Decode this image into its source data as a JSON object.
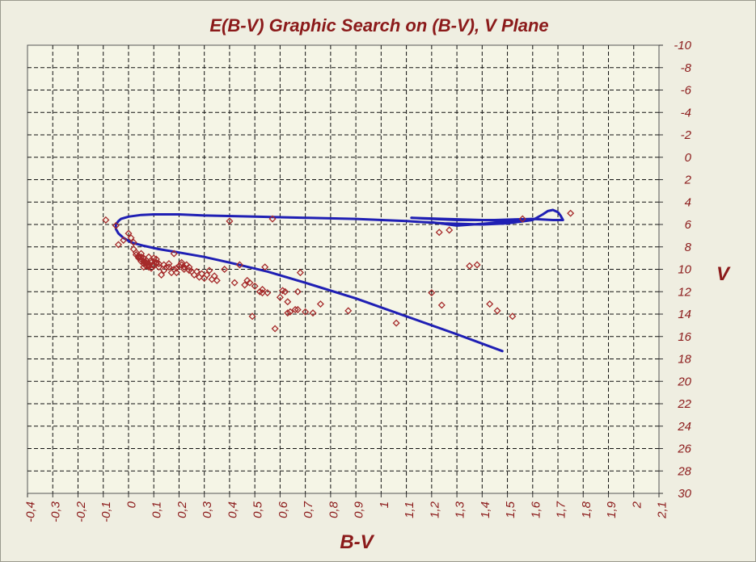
{
  "chart_data": {
    "type": "scatter",
    "title": "E(B-V) Graphic Search on (B-V), V Plane",
    "xlabel": "B-V",
    "ylabel": "V",
    "xlim": [
      -0.4,
      2.1
    ],
    "ylim": [
      -10,
      30
    ],
    "y_inverted": true,
    "grid": true,
    "y_axis_side": "right",
    "x_tick_labels": [
      "-0,4",
      "-0,3",
      "-0,2",
      "-0,1",
      "0",
      "0,1",
      "0,2",
      "0,3",
      "0,4",
      "0,5",
      "0,6",
      "0,7",
      "0,8",
      "0,9",
      "1",
      "1,1",
      "1,2",
      "1,3",
      "1,4",
      "1,5",
      "1,6",
      "1,7",
      "1,8",
      "1,9",
      "2",
      "2,1"
    ],
    "y_tick_labels": [
      "-10",
      "-8",
      "-6",
      "-4",
      "-2",
      "0",
      "2",
      "4",
      "6",
      "8",
      "10",
      "12",
      "14",
      "16",
      "18",
      "20",
      "22",
      "24",
      "26",
      "28",
      "30"
    ],
    "colors": {
      "points": "#a52a2a",
      "curve": "#1f1fb4",
      "grid": "#000000",
      "plot_bg": "#f5f5e6",
      "text": "#8b1a1a"
    },
    "series": [
      {
        "kind": "scatter",
        "marker": "diamond-open",
        "x": [
          -0.09,
          -0.05,
          -0.02,
          0.0,
          0.01,
          0.02,
          -0.04,
          0.02,
          0.03,
          0.04,
          0.05,
          0.06,
          0.07,
          0.08,
          0.09,
          0.1,
          0.11,
          0.12,
          0.04,
          0.05,
          0.06,
          0.07,
          0.08,
          0.09,
          0.1,
          0.11,
          0.03,
          0.04,
          0.05,
          0.06,
          0.07,
          0.08,
          0.09,
          0.1,
          0.06,
          0.07,
          0.08,
          0.09,
          0.1,
          0.11,
          0.12,
          0.13,
          0.14,
          0.15,
          0.16,
          0.17,
          0.18,
          0.19,
          0.2,
          0.21,
          0.22,
          0.23,
          0.24,
          0.25,
          0.16,
          0.18,
          0.19,
          0.21,
          0.22,
          0.24,
          0.26,
          0.27,
          0.28,
          0.29,
          0.3,
          0.31,
          0.32,
          0.33,
          0.34,
          0.35,
          0.38,
          0.42,
          0.44,
          0.46,
          0.47,
          0.48,
          0.5,
          0.52,
          0.53,
          0.54,
          0.55,
          0.6,
          0.61,
          0.62,
          0.63,
          0.64,
          0.66,
          0.67,
          0.68,
          0.7,
          0.73,
          0.76,
          0.87,
          1.06,
          1.2,
          1.24,
          1.35,
          1.38,
          1.43,
          1.46,
          1.52,
          1.56,
          1.75,
          0.4,
          0.57,
          1.23,
          1.27,
          0.49,
          0.58,
          0.63,
          0.67,
          0.53,
          0.14,
          0.05
        ],
        "y": [
          5.6,
          6.1,
          7.4,
          6.8,
          7.2,
          7.6,
          7.8,
          8.2,
          8.5,
          8.8,
          8.6,
          9.0,
          9.2,
          8.9,
          9.4,
          9.6,
          9.1,
          9.5,
          9.0,
          9.3,
          9.5,
          9.7,
          9.8,
          9.9,
          9.6,
          9.4,
          8.7,
          8.9,
          9.1,
          9.3,
          9.5,
          9.7,
          9.2,
          9.0,
          9.8,
          9.4,
          9.6,
          9.9,
          9.7,
          9.5,
          9.8,
          10.5,
          10.1,
          9.8,
          9.5,
          10.3,
          8.6,
          9.9,
          9.7,
          9.4,
          10.0,
          9.6,
          9.8,
          10.2,
          9.8,
          10.0,
          10.3,
          9.6,
          9.8,
          10.1,
          10.5,
          10.2,
          10.7,
          10.4,
          10.8,
          10.5,
          10.1,
          10.9,
          10.6,
          11.0,
          10.0,
          11.2,
          9.6,
          11.4,
          11.0,
          11.2,
          11.5,
          12.0,
          11.8,
          9.8,
          12.1,
          12.5,
          11.9,
          12.0,
          12.9,
          13.8,
          13.6,
          12.0,
          10.3,
          13.8,
          13.9,
          13.1,
          13.7,
          14.8,
          12.1,
          13.2,
          9.7,
          9.6,
          13.1,
          13.7,
          14.2,
          5.5,
          5.0,
          5.7,
          5.5,
          6.7,
          6.5,
          14.2,
          15.3,
          13.9,
          13.6,
          12.1,
          9.6,
          8.9
        ]
      },
      {
        "kind": "line",
        "x": [
          1.48,
          1.3,
          1.1,
          0.9,
          0.7,
          0.55,
          0.4,
          0.3,
          0.2,
          0.12,
          0.06,
          0.01,
          -0.02,
          -0.04,
          -0.05,
          -0.05,
          -0.04,
          -0.03,
          0.0,
          0.05,
          0.1,
          0.2,
          0.3,
          0.5,
          0.7,
          0.9,
          1.1,
          1.25,
          1.4,
          1.5,
          1.6,
          1.64,
          1.66,
          1.68,
          1.7,
          1.71,
          1.72,
          1.68,
          1.6,
          1.45,
          1.3,
          1.2,
          1.12,
          1.25,
          1.4,
          1.55,
          1.3,
          1.2
        ],
        "y": [
          17.3,
          15.8,
          14.2,
          12.6,
          11.2,
          10.2,
          9.4,
          8.9,
          8.5,
          8.2,
          7.9,
          7.6,
          7.2,
          6.8,
          6.4,
          6.0,
          5.7,
          5.5,
          5.3,
          5.15,
          5.1,
          5.1,
          5.2,
          5.3,
          5.4,
          5.5,
          5.7,
          5.9,
          6.0,
          5.9,
          5.6,
          5.1,
          4.8,
          4.7,
          4.9,
          5.2,
          5.6,
          5.6,
          5.5,
          5.6,
          5.6,
          5.5,
          5.4,
          5.5,
          5.6,
          5.7,
          6.1,
          5.8
        ]
      }
    ]
  }
}
